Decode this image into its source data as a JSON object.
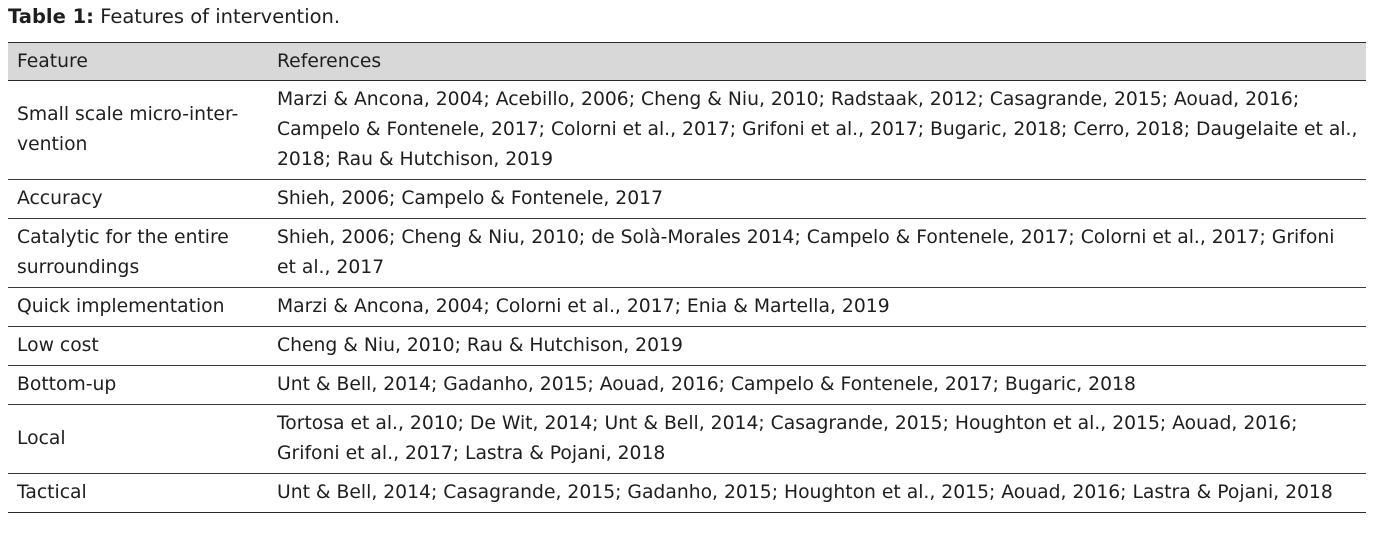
{
  "caption": {
    "label": "Table 1:",
    "text": "Features of intervention."
  },
  "table": {
    "headers": [
      "Feature",
      "References"
    ],
    "rows": [
      {
        "feature": "Small scale micro-inter-vention",
        "feature_lines": [
          "Small scale micro-inter-",
          "vention"
        ],
        "references": "Marzi & Ancona, 2004; Acebillo, 2006; Cheng & Niu, 2010; Radstaak, 2012; Casagrande, 2015; Aouad, 2016; Campelo & Fontenele, 2017; Colorni et al., 2017; Grifoni et al., 2017; Bugaric, 2018; Cerro, 2018; Daugelaite et al., 2018; Rau & Hutchison, 2019",
        "reference_lines": [
          "Marzi & Ancona, 2004; Acebillo, 2006; Cheng & Niu, 2010; Radstaak, 2012; Casagrande, 2015; Aouad, 2016;",
          "Campelo & Fontenele, 2017; Colorni et al., 2017; Grifoni et al., 2017; Bugaric, 2018; Cerro, 2018; Daugelaite et al.,",
          "2018; Rau & Hutchison, 2019"
        ]
      },
      {
        "feature": "Accuracy",
        "feature_lines": [
          "Accuracy"
        ],
        "references": "Shieh, 2006; Campelo & Fontenele, 2017",
        "reference_lines": [
          "Shieh, 2006; Campelo & Fontenele, 2017"
        ]
      },
      {
        "feature": "Catalytic for the entire surroundings",
        "feature_lines": [
          "Catalytic for the entire",
          "surroundings"
        ],
        "references": "Shieh, 2006; Cheng & Niu, 2010; de Solà-Morales 2014; Campelo & Fontenele, 2017; Colorni et al., 2017; Grifoni et al., 2017",
        "reference_lines": [
          "Shieh, 2006; Cheng & Niu, 2010; de Solà-Morales 2014; Campelo & Fontenele, 2017; Colorni et al., 2017; Grifoni",
          "et al., 2017"
        ]
      },
      {
        "feature": "Quick implementation",
        "feature_lines": [
          "Quick implementation"
        ],
        "references": "Marzi & Ancona, 2004; Colorni et al., 2017; Enia & Martella, 2019",
        "reference_lines": [
          "Marzi & Ancona, 2004; Colorni et al., 2017; Enia & Martella, 2019"
        ]
      },
      {
        "feature": "Low cost",
        "feature_lines": [
          "Low cost"
        ],
        "references": "Cheng & Niu, 2010; Rau & Hutchison, 2019",
        "reference_lines": [
          "Cheng & Niu, 2010; Rau & Hutchison, 2019"
        ]
      },
      {
        "feature": "Bottom-up",
        "feature_lines": [
          "Bottom-up"
        ],
        "references": "Unt & Bell, 2014; Gadanho, 2015; Aouad, 2016; Campelo & Fontenele, 2017; Bugaric, 2018",
        "reference_lines": [
          "Unt & Bell, 2014; Gadanho, 2015; Aouad, 2016; Campelo & Fontenele, 2017; Bugaric, 2018"
        ]
      },
      {
        "feature": "Local",
        "feature_lines": [
          "Local"
        ],
        "references": "Tortosa et al., 2010; De Wit, 2014; Unt & Bell, 2014; Casagrande, 2015; Houghton et al., 2015; Aouad, 2016; Grifoni et al., 2017; Lastra & Pojani, 2018",
        "reference_lines": [
          "Tortosa et al., 2010; De Wit, 2014; Unt & Bell, 2014; Casagrande, 2015; Houghton et al., 2015; Aouad, 2016;",
          "Grifoni et al., 2017; Lastra & Pojani, 2018"
        ]
      },
      {
        "feature": "Tactical",
        "feature_lines": [
          "Tactical"
        ],
        "references": "Unt & Bell, 2014; Casagrande, 2015; Gadanho, 2015; Houghton et al., 2015; Aouad, 2016; Lastra & Pojani, 2018",
        "reference_lines": [
          "Unt & Bell, 2014; Casagrande, 2015; Gadanho, 2015; Houghton et al., 2015; Aouad, 2016; Lastra & Pojani, 2018"
        ]
      }
    ]
  }
}
